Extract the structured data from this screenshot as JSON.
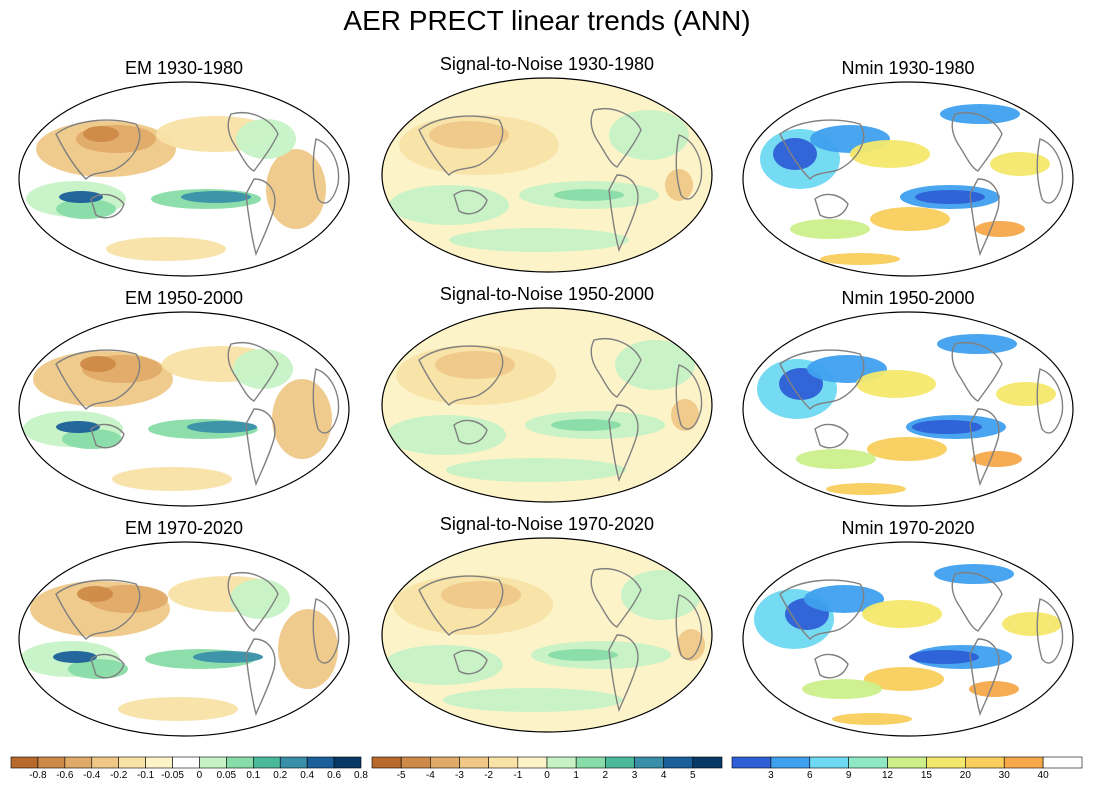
{
  "figure": {
    "title": "AER PRECT linear trends (ANN)"
  },
  "panels": [
    {
      "title": "EM 1930-1980",
      "kind": "em"
    },
    {
      "title": "Signal-to-Noise 1930-1980",
      "kind": "sn"
    },
    {
      "title": "Nmin 1930-1980",
      "kind": "nmin"
    },
    {
      "title": "EM 1950-2000",
      "kind": "em"
    },
    {
      "title": "Signal-to-Noise 1950-2000",
      "kind": "sn"
    },
    {
      "title": "Nmin 1950-2000",
      "kind": "nmin"
    },
    {
      "title": "EM 1970-2020",
      "kind": "em"
    },
    {
      "title": "Signal-to-Noise 1970-2020",
      "kind": "sn"
    },
    {
      "title": "Nmin 1970-2020",
      "kind": "nmin"
    }
  ],
  "colorbars": {
    "em": {
      "colors": [
        "#b86a2c",
        "#cd8a48",
        "#e0aa68",
        "#efc888",
        "#f8e2a6",
        "#fdf3c8",
        "#ffffff",
        "#c6f2c6",
        "#88dca8",
        "#4ab89a",
        "#3a8fa8",
        "#1a5f9a",
        "#083a68"
      ],
      "labels": [
        "-0.8",
        "-0.6",
        "-0.4",
        "-0.2",
        "-0.1",
        "-0.05",
        "0",
        "0.05",
        "0.1",
        "0.2",
        "0.4",
        "0.6",
        "0.8"
      ]
    },
    "sn": {
      "colors": [
        "#b86a2c",
        "#cd8a48",
        "#e0aa68",
        "#efc888",
        "#f8e2a6",
        "#fdf3c8",
        "#c6f2c6",
        "#88dca8",
        "#4ab89a",
        "#3a8fa8",
        "#1a5f9a",
        "#083a68"
      ],
      "labels": [
        "-5",
        "-4",
        "-3",
        "-2",
        "-1",
        "0",
        "1",
        "2",
        "3",
        "4",
        "5"
      ]
    },
    "nmin": {
      "colors": [
        "#2e5fd6",
        "#3fa0ee",
        "#6ed9f2",
        "#8ee8c4",
        "#ccef8a",
        "#f4e86c",
        "#f8ce5c",
        "#f6a84a",
        "#ffffff"
      ],
      "labels": [
        "3",
        "6",
        "9",
        "12",
        "15",
        "20",
        "30",
        "40"
      ]
    }
  }
}
